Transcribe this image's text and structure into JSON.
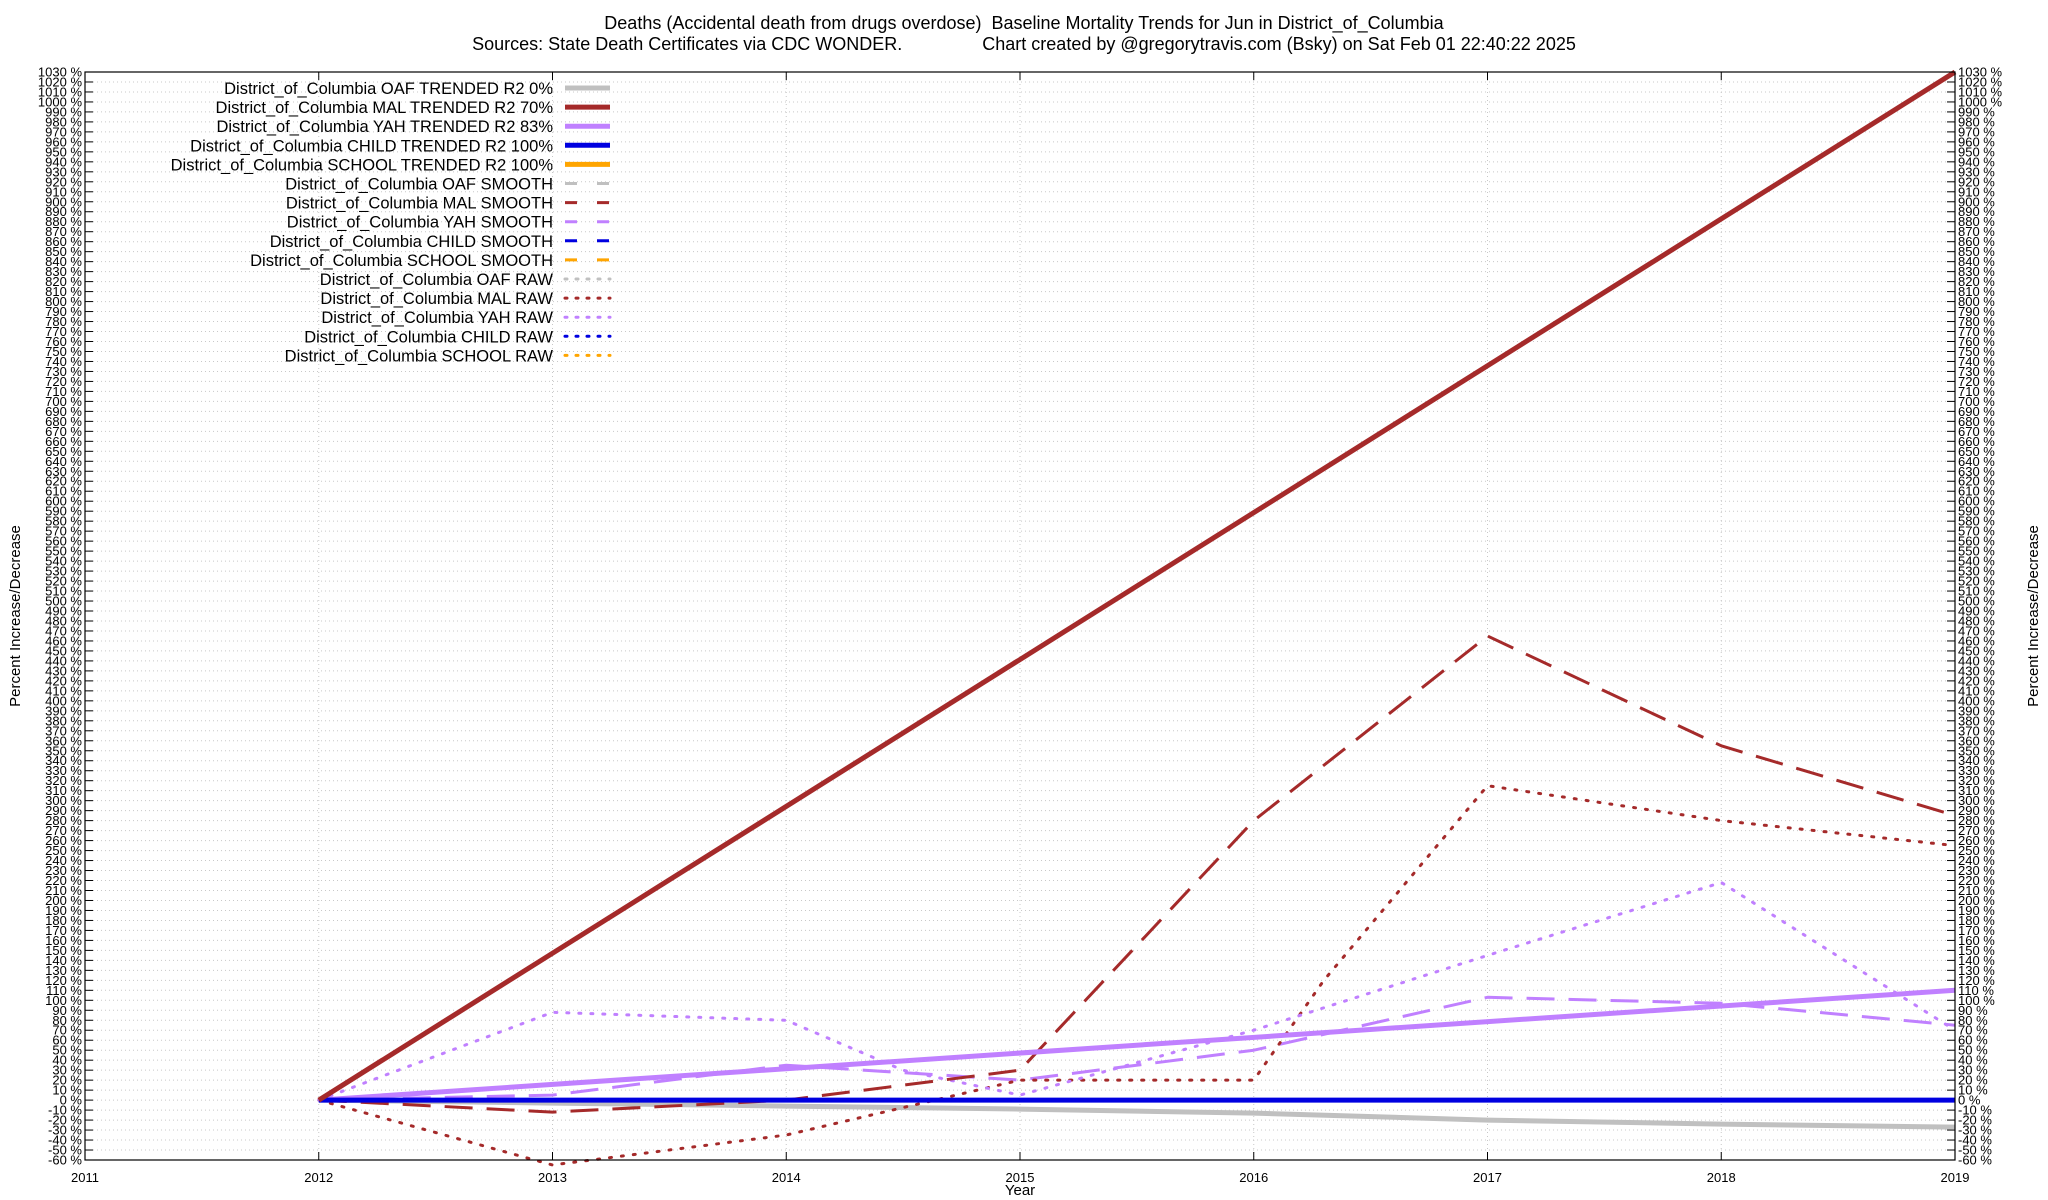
{
  "header": {
    "title": "Deaths (Accidental death from drugs overdose)  Baseline Mortality Trends for Jun in District_of_Columbia",
    "subtitle": "Sources: State Death Certificates via CDC WONDER.                Chart created by @gregorytravis.com (Bsky) on Sat Feb 01 22:40:22 2025"
  },
  "chart_data": {
    "type": "line",
    "title": "Deaths (Accidental death from drugs overdose)  Baseline Mortality Trends for Jun in District_of_Columbia",
    "subtitle": "Sources: State Death Certificates via CDC WONDER.                Chart created by @gregorytravis.com (Bsky) on Sat Feb 01 22:40:22 2025",
    "xlabel": "Year",
    "ylabel": "Percent Increase/Decrease",
    "y2label": "Percent Increase/Decrease",
    "xlim": [
      2011,
      2019
    ],
    "ylim": [
      -60,
      1030
    ],
    "ytick_step": 10,
    "ytick_suffix": " %",
    "xticks": [
      2011,
      2012,
      2013,
      2014,
      2015,
      2016,
      2017,
      2018,
      2019
    ],
    "grid": true,
    "legend_position": "top-left",
    "series": [
      {
        "name": "District_of_Columbia OAF TRENDED R2   0%",
        "color": "#c0c0c0",
        "style": "solid",
        "width": 5,
        "x": [
          2012,
          2013,
          2014,
          2015,
          2016,
          2017,
          2018,
          2019
        ],
        "y": [
          0,
          -3,
          -6,
          -9,
          -13,
          -20,
          -24,
          -27
        ]
      },
      {
        "name": "District_of_Columbia MAL TRENDED R2  70%",
        "color": "#a52a2a",
        "style": "solid",
        "width": 5,
        "x": [
          2012,
          2019
        ],
        "y": [
          0,
          1030
        ]
      },
      {
        "name": "District_of_Columbia YAH TRENDED R2  83%",
        "color": "#c080ff",
        "style": "solid",
        "width": 5,
        "x": [
          2012,
          2019
        ],
        "y": [
          0,
          110
        ]
      },
      {
        "name": "District_of_Columbia CHILD TRENDED R2 100%",
        "color": "#0000e0",
        "style": "solid",
        "width": 5,
        "x": [
          2012,
          2019
        ],
        "y": [
          0,
          0
        ]
      },
      {
        "name": "District_of_Columbia SCHOOL TRENDED R2 100%",
        "color": "#ffa500",
        "style": "solid",
        "width": 5,
        "x": [],
        "y": []
      },
      {
        "name": "District_of_Columbia OAF SMOOTH",
        "color": "#c0c0c0",
        "style": "dashed",
        "width": 3,
        "x": [],
        "y": []
      },
      {
        "name": "District_of_Columbia MAL SMOOTH",
        "color": "#a52a2a",
        "style": "dashed",
        "width": 3,
        "x": [
          2012,
          2013,
          2014,
          2015,
          2016,
          2017,
          2018,
          2019
        ],
        "y": [
          0,
          -12,
          0,
          30,
          280,
          465,
          355,
          285
        ]
      },
      {
        "name": "District_of_Columbia YAH SMOOTH",
        "color": "#c080ff",
        "style": "dashed",
        "width": 3,
        "x": [
          2012,
          2013,
          2014,
          2015,
          2016,
          2017,
          2018,
          2019
        ],
        "y": [
          0,
          5,
          35,
          20,
          50,
          103,
          97,
          75
        ]
      },
      {
        "name": "District_of_Columbia CHILD SMOOTH",
        "color": "#0000e0",
        "style": "dashed",
        "width": 3,
        "x": [],
        "y": []
      },
      {
        "name": "District_of_Columbia SCHOOL SMOOTH",
        "color": "#ffa500",
        "style": "dashed",
        "width": 3,
        "x": [],
        "y": []
      },
      {
        "name": "District_of_Columbia OAF RAW",
        "color": "#c0c0c0",
        "style": "dotted",
        "width": 3,
        "x": [],
        "y": []
      },
      {
        "name": "District_of_Columbia MAL RAW",
        "color": "#a52a2a",
        "style": "dotted",
        "width": 3,
        "x": [
          2012,
          2013,
          2014,
          2015,
          2016,
          2016.3,
          2017,
          2018,
          2019
        ],
        "y": [
          0,
          -65,
          -35,
          20,
          20,
          120,
          315,
          280,
          255
        ]
      },
      {
        "name": "District_of_Columbia YAH RAW",
        "color": "#c080ff",
        "style": "dotted",
        "width": 3,
        "x": [
          2012,
          2013,
          2014,
          2014.5,
          2015,
          2016,
          2017,
          2018,
          2019
        ],
        "y": [
          0,
          88,
          80,
          30,
          5,
          70,
          145,
          218,
          70
        ]
      },
      {
        "name": "District_of_Columbia CHILD RAW",
        "color": "#0000e0",
        "style": "dotted",
        "width": 3,
        "x": [],
        "y": []
      },
      {
        "name": "District_of_Columbia SCHOOL RAW",
        "color": "#ffa500",
        "style": "dotted",
        "width": 3,
        "x": [],
        "y": []
      }
    ]
  }
}
